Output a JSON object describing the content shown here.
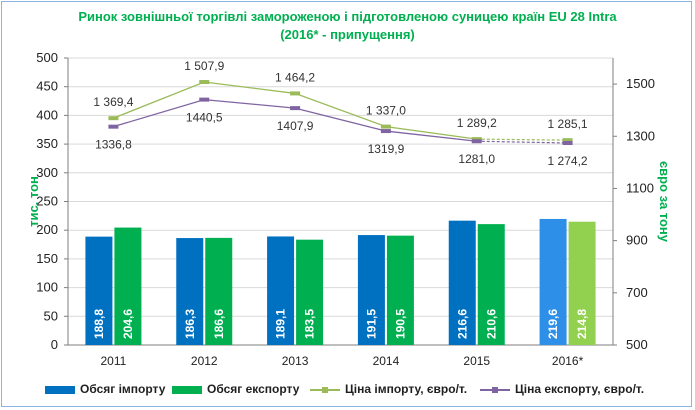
{
  "chart_data": {
    "type": "bar+line",
    "title_line1": "Ринок зовнішньої торгівлі замороженою і підготовленою суницею країн EU 28 Intra",
    "title_line2": "(2016* - припущення)",
    "categories": [
      "2011",
      "2012",
      "2013",
      "2014",
      "2015",
      "2016*"
    ],
    "ylabel_left": "тис. тон",
    "ylabel_right": "євро за тону",
    "ylim_left": [
      0,
      500
    ],
    "yticks_left": [
      0,
      50,
      100,
      150,
      200,
      250,
      300,
      350,
      400,
      450,
      500
    ],
    "ylim_right": [
      500,
      1600
    ],
    "yticks_right": [
      500,
      700,
      900,
      1100,
      1300,
      1500
    ],
    "bar_series": [
      {
        "name": "Обсяг імпорту",
        "color": "#0070c0",
        "last_color": "#2e8fe8",
        "values": [
          188.8,
          186.3,
          189.1,
          191.5,
          216.6,
          219.6
        ],
        "labels": [
          "188,8",
          "186,3",
          "189,1",
          "191,5",
          "216,6",
          "219,6"
        ]
      },
      {
        "name": "Обсяг експорту",
        "color": "#00b050",
        "last_color": "#92d050",
        "values": [
          204.6,
          186.6,
          183.5,
          190.5,
          210.6,
          214.8
        ],
        "labels": [
          "204,6",
          "186,6",
          "183,5",
          "190,5",
          "210,6",
          "214,8"
        ]
      }
    ],
    "line_series": [
      {
        "name": "Ціна імпорту, євро/т.",
        "color": "#9bbb59",
        "values": [
          1369.4,
          1507.9,
          1464.2,
          1337.0,
          1289.2,
          1285.1
        ],
        "labels": [
          "1 369,4",
          "1 507,9",
          "1 464,2",
          "1 337,0",
          "1 289,2",
          "1 285,1"
        ]
      },
      {
        "name": "Ціна експорту, євро/т.",
        "color": "#8064a2",
        "values": [
          1336.8,
          1440.5,
          1407.9,
          1319.9,
          1281.0,
          1274.2
        ],
        "labels": [
          "1336,8",
          "1440,5",
          "1407,9",
          "1319,9",
          "1281,0",
          "1 274,2"
        ]
      }
    ],
    "grid": true,
    "legend_position": "bottom"
  }
}
